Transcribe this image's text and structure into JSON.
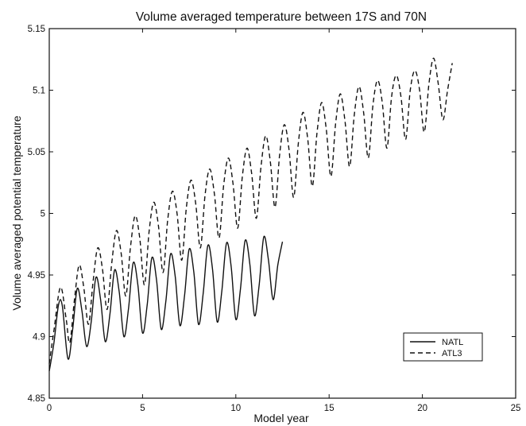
{
  "chart_data": {
    "type": "line",
    "title": "Volume averaged temperature between 17S and 70N",
    "xlabel": "Model year",
    "ylabel": "Volume averaged potential temperature",
    "xlim": [
      0,
      25
    ],
    "ylim": [
      4.85,
      5.15
    ],
    "x_ticks": [
      "0",
      "5",
      "10",
      "15",
      "20",
      "25"
    ],
    "y_ticks": [
      "4.85",
      "4.9",
      "4.95",
      "5",
      "5.05",
      "5.1",
      "5.15"
    ],
    "grid": false,
    "legend_position": "bottom-right",
    "series": [
      {
        "name": "NATL",
        "style": "solid",
        "color": "#111111",
        "x": [
          0.0,
          0.25,
          0.5,
          0.7,
          1.0,
          1.25,
          1.5,
          1.75,
          2.0,
          2.25,
          2.5,
          2.75,
          3.0,
          3.25,
          3.5,
          3.75,
          4.0,
          4.25,
          4.5,
          4.75,
          5.0,
          5.25,
          5.5,
          5.75,
          6.0,
          6.25,
          6.5,
          6.75,
          7.0,
          7.25,
          7.5,
          7.75,
          8.0,
          8.25,
          8.5,
          8.75,
          9.0,
          9.25,
          9.5,
          9.75,
          10.0,
          10.25,
          10.5,
          10.75,
          11.0,
          11.25,
          11.5,
          11.75,
          12.0,
          12.25,
          12.5
        ],
        "y": [
          4.872,
          4.895,
          4.926,
          4.925,
          4.882,
          4.905,
          4.939,
          4.921,
          4.892,
          4.912,
          4.948,
          4.93,
          4.896,
          4.918,
          4.954,
          4.936,
          4.9,
          4.923,
          4.96,
          4.942,
          4.903,
          4.926,
          4.964,
          4.946,
          4.906,
          4.929,
          4.967,
          4.949,
          4.909,
          4.933,
          4.971,
          4.952,
          4.91,
          4.935,
          4.974,
          4.955,
          4.912,
          4.937,
          4.976,
          4.957,
          4.914,
          4.939,
          4.978,
          4.959,
          4.917,
          4.942,
          4.981,
          4.962,
          4.93,
          4.958,
          4.977
        ]
      },
      {
        "name": "ATL3",
        "style": "dashed",
        "color": "#111111",
        "x": [
          0.0,
          0.25,
          0.6,
          0.9,
          1.1,
          1.35,
          1.6,
          1.85,
          2.1,
          2.35,
          2.6,
          2.85,
          3.1,
          3.35,
          3.6,
          3.85,
          4.1,
          4.35,
          4.6,
          4.85,
          5.1,
          5.35,
          5.6,
          5.85,
          6.1,
          6.35,
          6.6,
          6.85,
          7.1,
          7.35,
          7.6,
          7.85,
          8.1,
          8.35,
          8.6,
          8.85,
          9.1,
          9.35,
          9.6,
          9.85,
          10.1,
          10.35,
          10.6,
          10.85,
          11.1,
          11.35,
          11.6,
          11.85,
          12.1,
          12.35,
          12.6,
          12.85,
          13.1,
          13.35,
          13.6,
          13.85,
          14.1,
          14.35,
          14.6,
          14.85,
          15.1,
          15.35,
          15.6,
          15.85,
          16.1,
          16.35,
          16.6,
          16.85,
          17.1,
          17.35,
          17.6,
          17.85,
          18.1,
          18.35,
          18.6,
          18.85,
          19.1,
          19.35,
          19.6,
          19.85,
          20.1,
          20.35,
          20.6,
          20.85,
          21.1,
          21.35,
          21.6
        ],
        "y": [
          4.878,
          4.905,
          4.94,
          4.915,
          4.895,
          4.93,
          4.958,
          4.94,
          4.91,
          4.945,
          4.972,
          4.955,
          4.922,
          4.96,
          4.986,
          4.968,
          4.933,
          4.972,
          4.998,
          4.98,
          4.942,
          4.985,
          5.009,
          4.99,
          4.952,
          4.995,
          5.018,
          5.0,
          4.962,
          5.005,
          5.027,
          5.008,
          4.972,
          5.015,
          5.036,
          5.016,
          4.98,
          5.023,
          5.045,
          5.024,
          4.988,
          5.03,
          5.053,
          5.032,
          4.996,
          5.038,
          5.063,
          5.042,
          5.005,
          5.048,
          5.072,
          5.052,
          5.013,
          5.057,
          5.082,
          5.061,
          5.022,
          5.065,
          5.09,
          5.068,
          5.03,
          5.073,
          5.097,
          5.075,
          5.038,
          5.08,
          5.103,
          5.082,
          5.045,
          5.088,
          5.108,
          5.09,
          5.053,
          5.095,
          5.112,
          5.095,
          5.06,
          5.1,
          5.116,
          5.1,
          5.066,
          5.105,
          5.126,
          5.105,
          5.076,
          5.1,
          5.122
        ]
      }
    ]
  }
}
